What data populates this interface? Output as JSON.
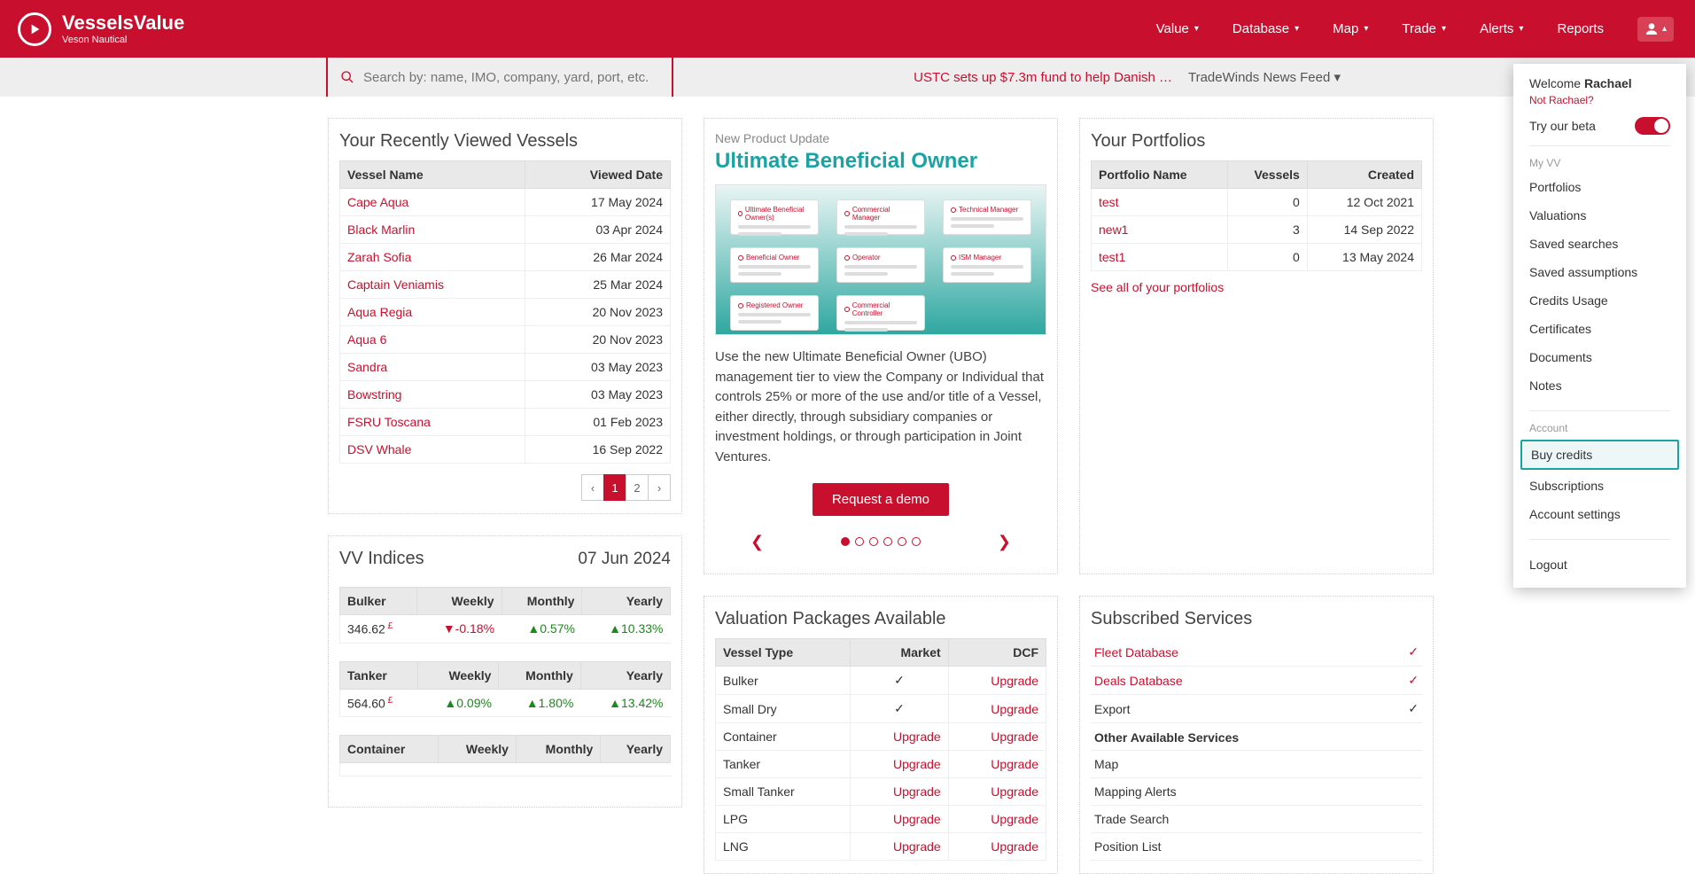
{
  "brand": {
    "name": "VesselsValue",
    "sub": "Veson Nautical"
  },
  "nav": {
    "items": [
      "Value",
      "Database",
      "Map",
      "Trade",
      "Alerts",
      "Reports"
    ]
  },
  "search": {
    "placeholder": "Search by: name, IMO, company, yard, port, etc."
  },
  "news": {
    "headline": "USTC sets up $7.3m fund to help Danish …",
    "feed": "TradeWinds News Feed ▾"
  },
  "recent": {
    "title": "Your Recently Viewed Vessels",
    "cols": [
      "Vessel Name",
      "Viewed Date"
    ],
    "rows": [
      {
        "name": "Cape Aqua",
        "date": "17 May 2024"
      },
      {
        "name": "Black Marlin",
        "date": "03 Apr 2024"
      },
      {
        "name": "Zarah Sofia",
        "date": "26 Mar 2024"
      },
      {
        "name": "Captain Veniamis",
        "date": "25 Mar 2024"
      },
      {
        "name": "Aqua Regia",
        "date": "20 Nov 2023"
      },
      {
        "name": "Aqua 6",
        "date": "20 Nov 2023"
      },
      {
        "name": "Sandra",
        "date": "03 May 2023"
      },
      {
        "name": "Bowstring",
        "date": "03 May 2023"
      },
      {
        "name": "FSRU Toscana",
        "date": "01 Feb 2023"
      },
      {
        "name": "DSV Whale",
        "date": "16 Sep 2022"
      }
    ],
    "pages": [
      "‹",
      "1",
      "2",
      "›"
    ],
    "active_page": 1
  },
  "newproduct": {
    "sub": "New Product Update",
    "title": "Ultimate Beneficial Owner",
    "desc": "Use the new Ultimate Beneficial Owner (UBO) management tier to view the Company or Individual that controls 25% or more of the use and/or title of a Vessel, either directly, through subsidiary companies or investment holdings, or through participation in Joint Ventures.",
    "cta": "Request a demo",
    "cards": [
      "Ultimate Beneficial Owner(s)",
      "Commercial Manager",
      "Technical Manager",
      "Beneficial Owner",
      "Operator",
      "ISM Manager",
      "Registered Owner",
      "Commercial Controller"
    ]
  },
  "portfolios": {
    "title": "Your Portfolios",
    "cols": [
      "Portfolio Name",
      "Vessels",
      "Created"
    ],
    "rows": [
      {
        "name": "test",
        "vessels": "0",
        "created": "12 Oct 2021"
      },
      {
        "name": "new1",
        "vessels": "3",
        "created": "14 Sep 2022"
      },
      {
        "name": "test1",
        "vessels": "0",
        "created": "13 May 2024"
      }
    ],
    "see_all": "See all of your portfolios"
  },
  "indices": {
    "title": "VV Indices",
    "date": "07 Jun 2024",
    "cols": [
      "",
      "Weekly",
      "Monthly",
      "Yearly"
    ],
    "blocks": [
      {
        "name": "Bulker",
        "value": "346.62",
        "w": "▼-0.18%",
        "wcls": "down",
        "m": "▲0.57%",
        "mcls": "up",
        "y": "▲10.33%",
        "ycls": "up"
      },
      {
        "name": "Tanker",
        "value": "564.60",
        "w": "▲0.09%",
        "wcls": "up",
        "m": "▲1.80%",
        "mcls": "up",
        "y": "▲13.42%",
        "ycls": "up"
      },
      {
        "name": "Container",
        "value": "",
        "w": "",
        "wcls": "up",
        "m": "",
        "mcls": "up",
        "y": "",
        "ycls": "up"
      }
    ]
  },
  "packages": {
    "title": "Valuation Packages Available",
    "cols": [
      "Vessel Type",
      "Market",
      "DCF"
    ],
    "rows": [
      {
        "type": "Bulker",
        "market": "✓",
        "market_is_tick": true,
        "dcf": "Upgrade"
      },
      {
        "type": "Small Dry",
        "market": "✓",
        "market_is_tick": true,
        "dcf": "Upgrade"
      },
      {
        "type": "Container",
        "market": "Upgrade",
        "market_is_tick": false,
        "dcf": "Upgrade"
      },
      {
        "type": "Tanker",
        "market": "Upgrade",
        "market_is_tick": false,
        "dcf": "Upgrade"
      },
      {
        "type": "Small Tanker",
        "market": "Upgrade",
        "market_is_tick": false,
        "dcf": "Upgrade"
      },
      {
        "type": "LPG",
        "market": "Upgrade",
        "market_is_tick": false,
        "dcf": "Upgrade"
      },
      {
        "type": "LNG",
        "market": "Upgrade",
        "market_is_tick": false,
        "dcf": "Upgrade"
      }
    ]
  },
  "services": {
    "title": "Subscribed Services",
    "subscribed": [
      {
        "name": "Fleet Database",
        "link": true,
        "tick": "✓",
        "red": true
      },
      {
        "name": "Deals Database",
        "link": true,
        "tick": "✓",
        "red": true
      },
      {
        "name": "Export",
        "link": false,
        "tick": "✓",
        "red": false
      }
    ],
    "other_label": "Other Available Services",
    "other": [
      "Map",
      "Mapping Alerts",
      "Trade Search",
      "Position List"
    ]
  },
  "dropdown": {
    "welcome_prefix": "Welcome ",
    "user": "Rachael",
    "not": "Not Rachael?",
    "beta": "Try our beta",
    "grp1": "My VV",
    "items1": [
      "Portfolios",
      "Valuations",
      "Saved searches",
      "Saved assumptions",
      "Credits Usage",
      "Certificates",
      "Documents",
      "Notes"
    ],
    "grp2": "Account",
    "highlight": "Buy credits",
    "items2": [
      "Subscriptions",
      "Account settings"
    ],
    "logout": "Logout"
  }
}
